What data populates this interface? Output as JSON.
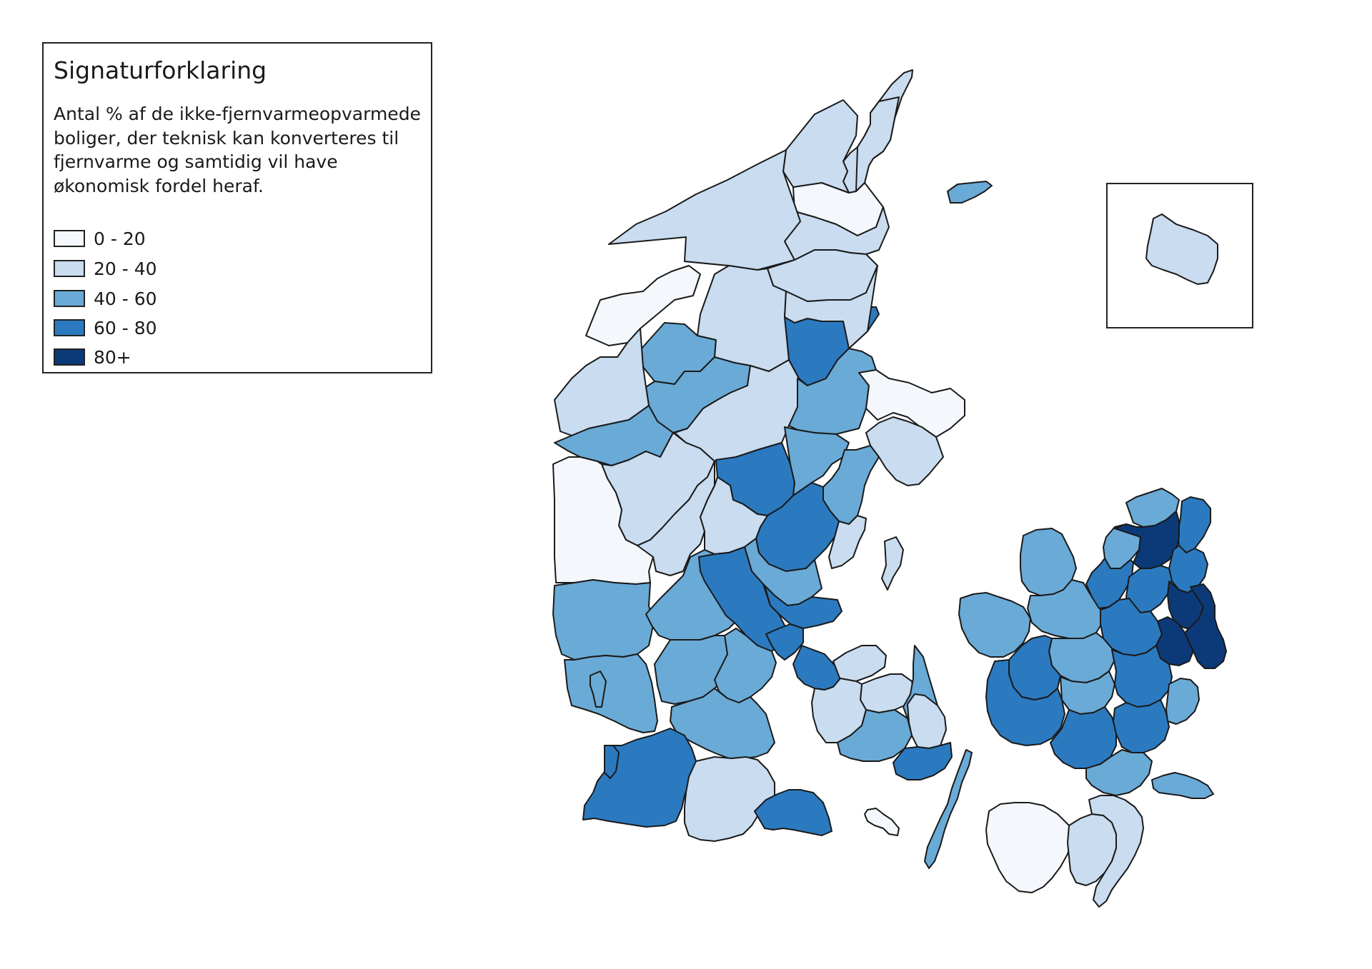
{
  "legend": {
    "title": "Signaturforklaring",
    "description": "Antal % af de ikke-fjernvarmeopvarmede boliger, der teknisk kan konverteres til fjernvarme og samtidig vil have økonomisk fordel heraf.",
    "classes": [
      {
        "label": "0 - 20",
        "color": "#f4f8fd"
      },
      {
        "label": "20 - 40",
        "color": "#c9dcf0"
      },
      {
        "label": "40 - 60",
        "color": "#6aaad6"
      },
      {
        "label": "60 - 80",
        "color": "#2b7ac0"
      },
      {
        "label": "80+",
        "color": "#0c3a78"
      }
    ]
  },
  "map": {
    "stroke_color": "#1a1a1a",
    "regions": [
      {
        "name": "north-tip",
        "class": 1
      },
      {
        "name": "frederikshavn-area",
        "class": 1
      },
      {
        "name": "hjorring-north",
        "class": 0
      },
      {
        "name": "hjorring",
        "class": 1
      },
      {
        "name": "thisted-north",
        "class": 1
      },
      {
        "name": "jammerbugt",
        "class": 1
      },
      {
        "name": "mors",
        "class": 2
      },
      {
        "name": "thisted-west",
        "class": 0
      },
      {
        "name": "aalborg",
        "class": 1
      },
      {
        "name": "mariagerfjord",
        "class": 3
      },
      {
        "name": "vesthimmerland",
        "class": 1
      },
      {
        "name": "rebild",
        "class": 1
      },
      {
        "name": "skive",
        "class": 2
      },
      {
        "name": "viborg",
        "class": 1
      },
      {
        "name": "randers",
        "class": 2
      },
      {
        "name": "norddjurs",
        "class": 0
      },
      {
        "name": "syddjurs",
        "class": 1
      },
      {
        "name": "lemvig",
        "class": 1
      },
      {
        "name": "struer",
        "class": 2
      },
      {
        "name": "holstebro",
        "class": 1
      },
      {
        "name": "ringkobing-skjern",
        "class": 0
      },
      {
        "name": "herning",
        "class": 1
      },
      {
        "name": "silkeborg",
        "class": 3
      },
      {
        "name": "favrskov",
        "class": 2
      },
      {
        "name": "aarhus",
        "class": 2
      },
      {
        "name": "skanderborg",
        "class": 3
      },
      {
        "name": "odder",
        "class": 1
      },
      {
        "name": "ikast-brande",
        "class": 1
      },
      {
        "name": "horsens",
        "class": 2
      },
      {
        "name": "hedensted",
        "class": 3
      },
      {
        "name": "varde",
        "class": 2
      },
      {
        "name": "billund",
        "class": 2
      },
      {
        "name": "vejle",
        "class": 3
      },
      {
        "name": "fredericia",
        "class": 3
      },
      {
        "name": "esbjerg",
        "class": 2
      },
      {
        "name": "vejen",
        "class": 2
      },
      {
        "name": "kolding",
        "class": 2
      },
      {
        "name": "haderslev",
        "class": 2
      },
      {
        "name": "tonder",
        "class": 3
      },
      {
        "name": "aabenraa",
        "class": 1
      },
      {
        "name": "sonderborg",
        "class": 3
      },
      {
        "name": "fano",
        "class": 2
      },
      {
        "name": "romo",
        "class": 3
      },
      {
        "name": "anholt",
        "class": 2
      },
      {
        "name": "samso",
        "class": 1
      },
      {
        "name": "middelfart",
        "class": 3
      },
      {
        "name": "bogense",
        "class": 1
      },
      {
        "name": "odense",
        "class": 1
      },
      {
        "name": "kerteminde",
        "class": 2
      },
      {
        "name": "assens",
        "class": 1
      },
      {
        "name": "faaborg",
        "class": 2
      },
      {
        "name": "nyborg",
        "class": 1
      },
      {
        "name": "svendborg",
        "class": 3
      },
      {
        "name": "langeland",
        "class": 2
      },
      {
        "name": "aero",
        "class": 0
      },
      {
        "name": "odsherred",
        "class": 2
      },
      {
        "name": "holbaek",
        "class": 2
      },
      {
        "name": "kalundborg",
        "class": 2
      },
      {
        "name": "halsnaes",
        "class": 2
      },
      {
        "name": "gribskov",
        "class": 2
      },
      {
        "name": "helsingor",
        "class": 3
      },
      {
        "name": "hillerod",
        "class": 4
      },
      {
        "name": "fredensborg",
        "class": 3
      },
      {
        "name": "frederikssund",
        "class": 3
      },
      {
        "name": "egedal",
        "class": 3
      },
      {
        "name": "furesoe",
        "class": 4
      },
      {
        "name": "copenhagen-core",
        "class": 4
      },
      {
        "name": "roskilde",
        "class": 3
      },
      {
        "name": "greve",
        "class": 4
      },
      {
        "name": "lejre",
        "class": 2
      },
      {
        "name": "soro",
        "class": 3
      },
      {
        "name": "ringsted",
        "class": 2
      },
      {
        "name": "koge",
        "class": 3
      },
      {
        "name": "slagelse",
        "class": 3
      },
      {
        "name": "naestved",
        "class": 3
      },
      {
        "name": "faxe",
        "class": 3
      },
      {
        "name": "stevns",
        "class": 2
      },
      {
        "name": "vordingborg",
        "class": 2
      },
      {
        "name": "mon",
        "class": 2
      },
      {
        "name": "lolland",
        "class": 0
      },
      {
        "name": "guldborgsund",
        "class": 1
      },
      {
        "name": "falster-south",
        "class": 1
      },
      {
        "name": "bornholm",
        "class": 1
      }
    ]
  }
}
